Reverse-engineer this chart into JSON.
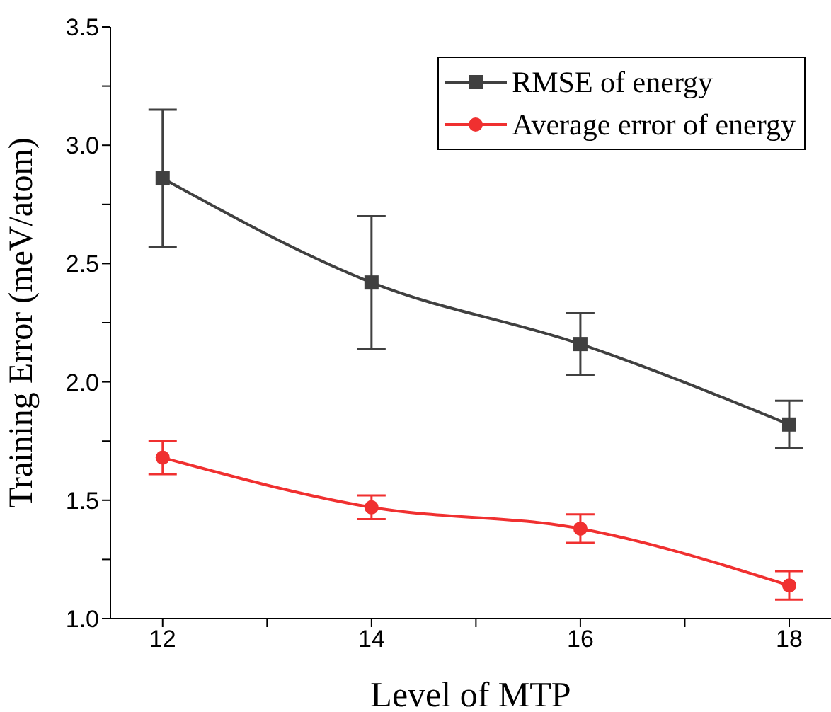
{
  "chart_data": {
    "type": "line",
    "xlabel": "Level of MTP",
    "ylabel": "Training Error (meV/atom)",
    "x": [
      12,
      14,
      16,
      18
    ],
    "series": [
      {
        "name": "RMSE of energy",
        "color": "#404040",
        "marker": "square",
        "values": [
          2.86,
          2.42,
          2.16,
          1.82
        ],
        "errors": [
          0.29,
          0.28,
          0.13,
          0.1
        ]
      },
      {
        "name": "Average error of energy",
        "color": "#f03030",
        "marker": "circle",
        "values": [
          1.68,
          1.47,
          1.38,
          1.14
        ],
        "errors": [
          0.07,
          0.05,
          0.06,
          0.06
        ]
      }
    ],
    "xlim": [
      11.5,
      18.4
    ],
    "xticks": [
      12,
      {
        "value": 13,
        "label": null
      },
      14,
      {
        "value": 15,
        "label": null
      },
      16,
      {
        "value": 17,
        "label": null
      },
      18
    ],
    "ylim": [
      1.0,
      3.5
    ],
    "yticks": [
      {
        "value": 1,
        "label": "1.0"
      },
      {
        "value": 1.25,
        "label": null
      },
      {
        "value": 1.5,
        "label": "1.5"
      },
      {
        "value": 1.75,
        "label": null
      },
      {
        "value": 2,
        "label": "2.0"
      },
      {
        "value": 2.25,
        "label": null
      },
      {
        "value": 2.5,
        "label": "2.5"
      },
      {
        "value": 2.75,
        "label": null
      },
      {
        "value": 3,
        "label": "3.0"
      },
      {
        "value": 3.25,
        "label": null
      },
      {
        "value": 3.5,
        "label": "3.5"
      }
    ],
    "grid": false,
    "legend": "top right",
    "line_style": "solid"
  }
}
